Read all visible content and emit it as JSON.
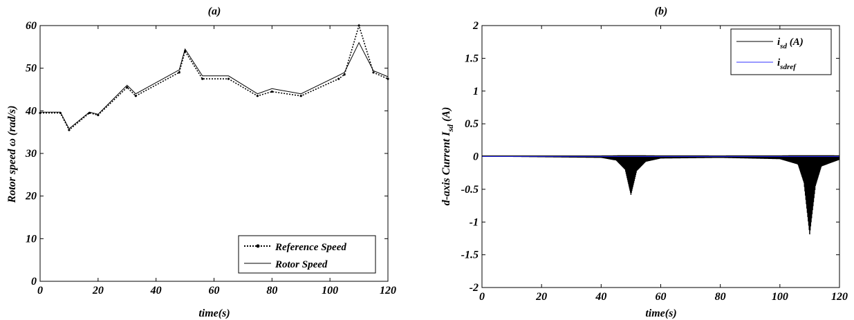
{
  "chart_data": [
    {
      "type": "line",
      "title": "(a)",
      "xlabel": "time(s)",
      "ylabel_parts": [
        "Rotor speed ",
        "ω",
        " (rad/s)"
      ],
      "xlim": [
        0,
        120
      ],
      "ylim": [
        0,
        60
      ],
      "xticks": [
        "0",
        "20",
        "40",
        "60",
        "80",
        "100",
        "120"
      ],
      "yticks": [
        "0",
        "10",
        "20",
        "30",
        "40",
        "50",
        "60"
      ],
      "grid": false,
      "legend_placement": "bottom-right",
      "series": [
        {
          "name": "Reference Speed",
          "style": "dotted-marker",
          "color": "#000000",
          "x": [
            0,
            7,
            10,
            17,
            20,
            30,
            33,
            48,
            50,
            56,
            65,
            75,
            80,
            90,
            103,
            105,
            110,
            115,
            120
          ],
          "y": [
            39.5,
            39.5,
            35.5,
            39.5,
            39,
            45.5,
            43.5,
            49,
            54,
            47.5,
            47.5,
            43.5,
            44.5,
            43.5,
            47.5,
            48.5,
            60,
            49,
            47.5
          ]
        },
        {
          "name": "Rotor Speed",
          "style": "solid",
          "color": "#000000",
          "x": [
            0,
            7,
            10,
            17,
            20,
            30,
            33,
            48,
            50,
            56,
            65,
            75,
            80,
            90,
            103,
            105,
            110,
            115,
            120
          ],
          "y": [
            39.7,
            39.7,
            35.8,
            39.7,
            39.2,
            46,
            44,
            49.6,
            54.5,
            48.2,
            48.2,
            44,
            45.2,
            44,
            48.3,
            49,
            56,
            49.4,
            48
          ]
        }
      ]
    },
    {
      "type": "line",
      "title": "(b)",
      "xlabel": "time(s)",
      "ylabel_parts": [
        "d-axis Current I",
        "sd",
        " (A)"
      ],
      "xlim": [
        0,
        120
      ],
      "ylim": [
        -2,
        2
      ],
      "xticks": [
        "0",
        "20",
        "40",
        "60",
        "80",
        "100",
        "120"
      ],
      "yticks": [
        "-2",
        "-1.5",
        "-1",
        "-0.5",
        "0",
        "0.5",
        "1",
        "1.5",
        "2"
      ],
      "grid": false,
      "legend_placement": "top-right",
      "series": [
        {
          "name_main": "i",
          "name_sub": "sd",
          "name_suffix": " (A)",
          "style": "solid",
          "color": "#000000",
          "x": [
            0,
            20,
            40,
            45,
            48,
            50,
            52,
            55,
            60,
            80,
            100,
            106,
            108,
            110,
            112,
            114,
            120
          ],
          "y": [
            0,
            -0.01,
            -0.02,
            -0.06,
            -0.2,
            -0.6,
            -0.22,
            -0.08,
            -0.03,
            -0.02,
            -0.04,
            -0.12,
            -0.4,
            -1.22,
            -0.45,
            -0.15,
            -0.05
          ]
        },
        {
          "name_main": "i",
          "name_sub": "sdref",
          "name_suffix": "",
          "style": "solid",
          "color": "#3333ff",
          "x": [
            0,
            120
          ],
          "y": [
            0,
            0
          ]
        }
      ]
    }
  ]
}
